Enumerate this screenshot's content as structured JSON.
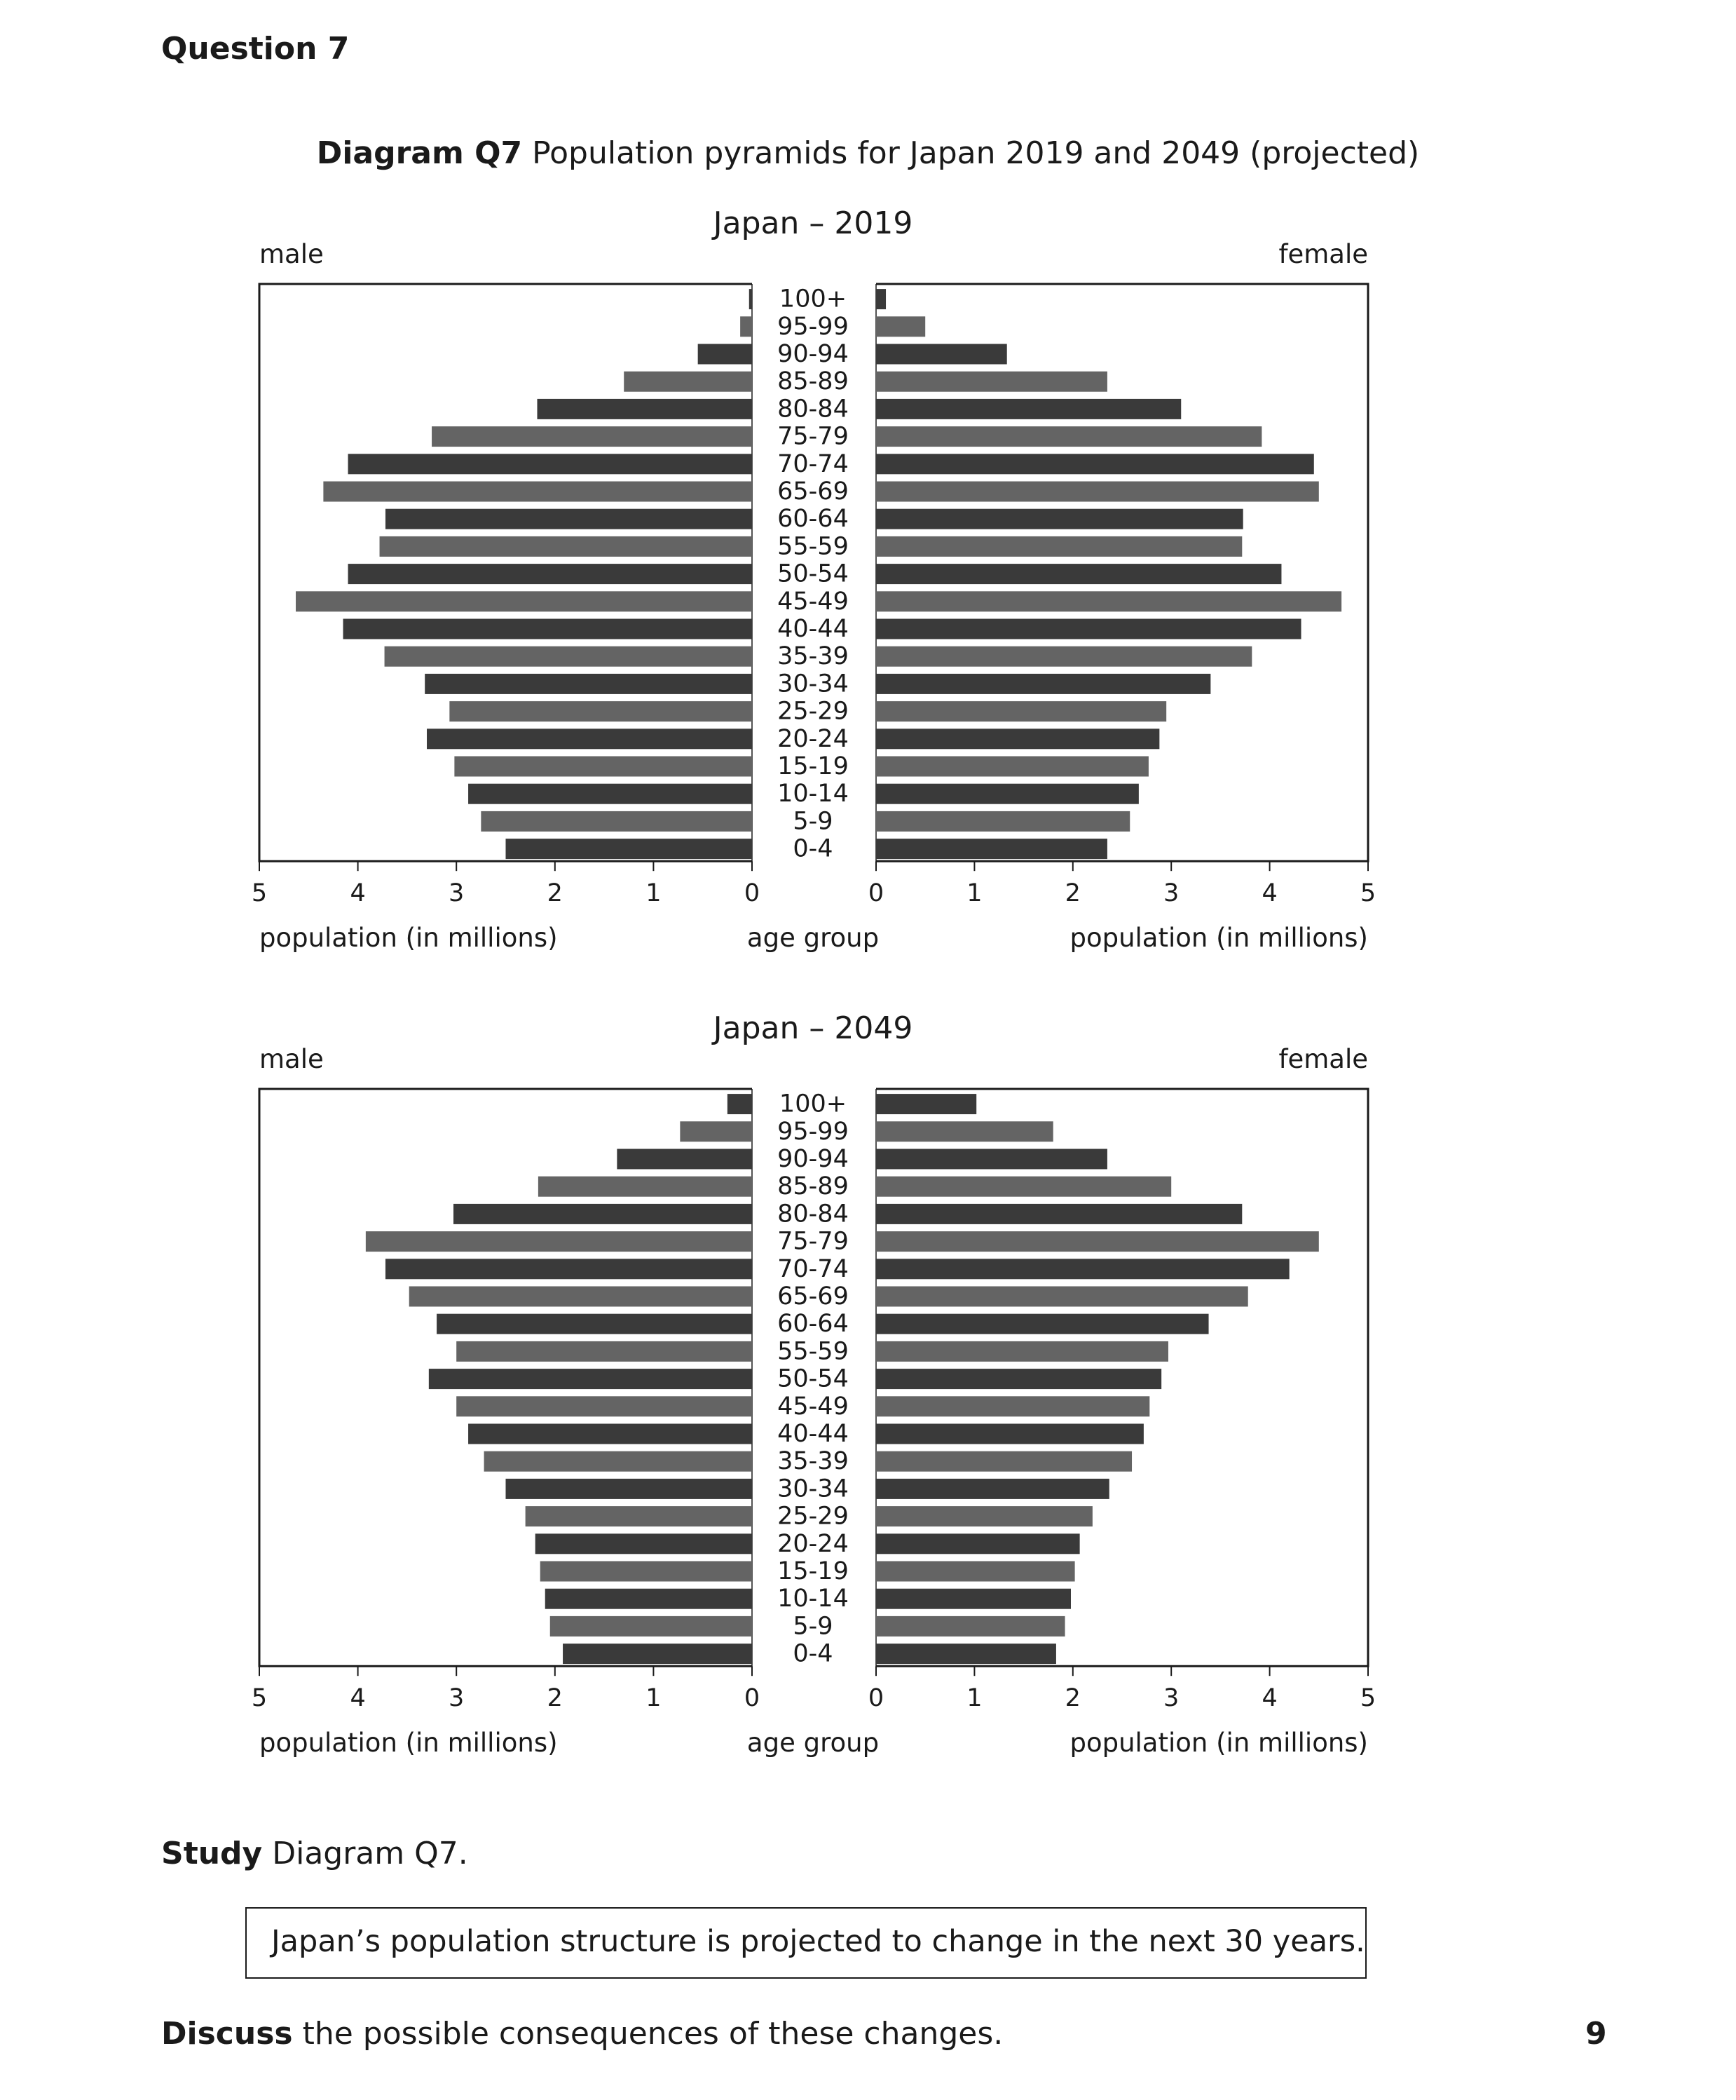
{
  "question": {
    "title": "Question 7"
  },
  "caption": {
    "label": "Diagram Q7",
    "text": "Population pyramids for Japan 2019 and 2049 (projected)"
  },
  "chart_data": [
    {
      "type": "bar",
      "title": "Japan – 2019",
      "left_label": "male",
      "right_label": "female",
      "xlabel_left": "population (in millions)",
      "xlabel_center": "age group",
      "xlabel_right": "population (in millions)",
      "xlim": [
        0,
        5
      ],
      "ticks": [
        "0",
        "1",
        "2",
        "3",
        "4",
        "5"
      ],
      "categories": [
        "100+",
        "95-99",
        "90-94",
        "85-89",
        "80-84",
        "75-79",
        "70-74",
        "65-69",
        "60-64",
        "55-59",
        "50-54",
        "45-49",
        "40-44",
        "35-39",
        "30-34",
        "25-29",
        "20-24",
        "15-19",
        "10-14",
        "5-9",
        "0-4"
      ],
      "series": [
        {
          "name": "male",
          "values": [
            0.03,
            0.12,
            0.55,
            1.3,
            2.18,
            3.25,
            4.1,
            4.35,
            3.72,
            3.78,
            4.1,
            4.63,
            4.15,
            3.73,
            3.32,
            3.07,
            3.3,
            3.02,
            2.88,
            2.75,
            2.5
          ]
        },
        {
          "name": "female",
          "values": [
            0.1,
            0.5,
            1.33,
            2.35,
            3.1,
            3.92,
            4.45,
            4.5,
            3.73,
            3.72,
            4.12,
            4.73,
            4.32,
            3.82,
            3.4,
            2.95,
            2.88,
            2.77,
            2.67,
            2.58,
            2.35
          ]
        }
      ],
      "colors": {
        "dark": "#3a3a3a",
        "light": "#646464"
      }
    },
    {
      "type": "bar",
      "title": "Japan – 2049",
      "left_label": "male",
      "right_label": "female",
      "xlabel_left": "population (in millions)",
      "xlabel_center": "age group",
      "xlabel_right": "population (in millions)",
      "xlim": [
        0,
        5
      ],
      "ticks": [
        "0",
        "1",
        "2",
        "3",
        "4",
        "5"
      ],
      "categories": [
        "100+",
        "95-99",
        "90-94",
        "85-89",
        "80-84",
        "75-79",
        "70-74",
        "65-69",
        "60-64",
        "55-59",
        "50-54",
        "45-49",
        "40-44",
        "35-39",
        "30-34",
        "25-29",
        "20-24",
        "15-19",
        "10-14",
        "5-9",
        "0-4"
      ],
      "series": [
        {
          "name": "male",
          "values": [
            0.25,
            0.73,
            1.37,
            2.17,
            3.03,
            3.92,
            3.72,
            3.48,
            3.2,
            3.0,
            3.28,
            3.0,
            2.88,
            2.72,
            2.5,
            2.3,
            2.2,
            2.15,
            2.1,
            2.05,
            1.92
          ]
        },
        {
          "name": "female",
          "values": [
            1.02,
            1.8,
            2.35,
            3.0,
            3.72,
            4.5,
            4.2,
            3.78,
            3.38,
            2.97,
            2.9,
            2.78,
            2.72,
            2.6,
            2.37,
            2.2,
            2.07,
            2.02,
            1.98,
            1.92,
            1.83
          ]
        }
      ],
      "colors": {
        "dark": "#3a3a3a",
        "light": "#646464"
      }
    }
  ],
  "study": {
    "bold": "Study",
    "text": " Diagram Q7."
  },
  "statement": {
    "text": "Japan’s population structure is projected to change in the next 30 years."
  },
  "discuss": {
    "bold": "Discuss",
    "text": " the possible consequences of these changes."
  },
  "marks": "9"
}
